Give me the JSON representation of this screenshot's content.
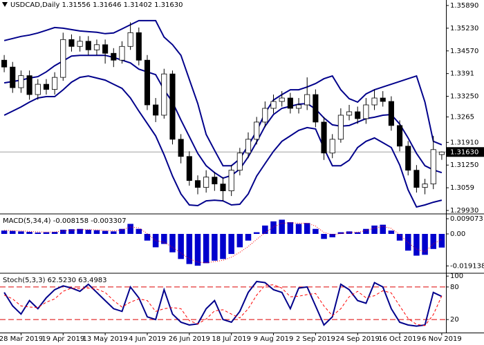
{
  "chart_data": [
    {
      "type": "candlestick",
      "title": "USDCAD,Daily  1.31556 1.31646 1.31402 1.31630",
      "categories": [
        null,
        null,
        "28 Mar 2019",
        null,
        null,
        null,
        null,
        "19 Apr 2019",
        null,
        null,
        null,
        null,
        "13 May 2019",
        null,
        null,
        null,
        null,
        "4 Jun 2019",
        null,
        null,
        null,
        null,
        "26 Jun 2019",
        null,
        null,
        null,
        null,
        "18 Jul 2019",
        null,
        null,
        null,
        null,
        "9 Aug 2019",
        null,
        null,
        null,
        null,
        "2 Sep 2019",
        null,
        null,
        null,
        null,
        "24 Sep 2019",
        null,
        null,
        null,
        null,
        "16 Oct 2019",
        null,
        null,
        null,
        null,
        "6 Nov 2019"
      ],
      "open": [
        1.343,
        1.341,
        1.335,
        1.3385,
        1.333,
        1.336,
        1.3345,
        1.338,
        1.349,
        1.347,
        1.3485,
        1.346,
        1.3475,
        1.345,
        1.343,
        1.347,
        1.351,
        1.343,
        1.33,
        1.327,
        1.339,
        1.32,
        1.315,
        1.308,
        1.306,
        1.309,
        1.307,
        1.305,
        1.311,
        1.316,
        1.32,
        1.325,
        1.329,
        1.331,
        1.332,
        1.329,
        1.33,
        1.333,
        1.325,
        1.316,
        1.32,
        1.327,
        1.328,
        1.326,
        1.33,
        1.332,
        1.331,
        1.324,
        1.318,
        1.311,
        1.306,
        1.307,
        1.31556
      ],
      "high": [
        1.3445,
        1.3425,
        1.34,
        1.34,
        1.3375,
        1.3375,
        1.3395,
        1.351,
        1.3505,
        1.35,
        1.35,
        1.349,
        1.349,
        1.3465,
        1.3485,
        1.354,
        1.3525,
        1.3445,
        1.332,
        1.3405,
        1.34,
        1.3215,
        1.3165,
        1.3095,
        1.311,
        1.3105,
        1.309,
        1.3125,
        1.3175,
        1.322,
        1.3265,
        1.331,
        1.333,
        1.334,
        1.3335,
        1.332,
        1.338,
        1.3345,
        1.3265,
        1.3215,
        1.329,
        1.33,
        1.3295,
        1.332,
        1.3345,
        1.334,
        1.3325,
        1.3255,
        1.3195,
        1.3125,
        1.3085,
        1.321,
        1.31646
      ],
      "low": [
        1.3395,
        1.3335,
        1.3335,
        1.3315,
        1.3315,
        1.333,
        1.333,
        1.337,
        1.3455,
        1.3455,
        1.3445,
        1.3445,
        1.342,
        1.341,
        1.342,
        1.346,
        1.3415,
        1.3285,
        1.325,
        1.326,
        1.3185,
        1.313,
        1.3065,
        1.304,
        1.3045,
        1.305,
        1.302,
        1.3035,
        1.3095,
        1.3145,
        1.3185,
        1.3235,
        1.3275,
        1.3295,
        1.3275,
        1.3275,
        1.3285,
        1.3235,
        1.314,
        1.3145,
        1.319,
        1.3255,
        1.3245,
        1.3245,
        1.3285,
        1.3295,
        1.3225,
        1.3165,
        1.3095,
        1.3045,
        1.304,
        1.3055,
        1.31402
      ],
      "close": [
        1.341,
        1.335,
        1.3385,
        1.333,
        1.336,
        1.3345,
        1.338,
        1.349,
        1.347,
        1.3485,
        1.346,
        1.3475,
        1.345,
        1.343,
        1.347,
        1.351,
        1.343,
        1.33,
        1.327,
        1.339,
        1.32,
        1.315,
        1.308,
        1.306,
        1.309,
        1.307,
        1.305,
        1.311,
        1.316,
        1.32,
        1.325,
        1.329,
        1.331,
        1.332,
        1.329,
        1.33,
        1.333,
        1.325,
        1.316,
        1.32,
        1.327,
        1.328,
        1.326,
        1.33,
        1.332,
        1.331,
        1.324,
        1.318,
        1.311,
        1.306,
        1.307,
        1.317,
        1.3163
      ],
      "up_color": "#ffffff",
      "down_color": "#000000",
      "bands": [
        {
          "color": "#00008b",
          "values": [
            1.3487,
            1.3493,
            1.3499,
            1.3503,
            1.3509,
            1.3517,
            1.3525,
            1.3523,
            1.3519,
            1.3515,
            1.3513,
            1.3511,
            1.3507,
            1.3509,
            1.3521,
            1.3533,
            1.3545,
            1.3545,
            1.3545,
            1.3497,
            1.3475,
            1.3444,
            1.3374,
            1.3304,
            1.3214,
            1.3168,
            1.3123,
            1.3123,
            1.3143,
            1.3182,
            1.3224,
            1.3276,
            1.3314,
            1.333,
            1.3344,
            1.3344,
            1.3352,
            1.3362,
            1.3376,
            1.3384,
            1.3344,
            1.3318,
            1.3308,
            1.3332,
            1.3344,
            1.3352,
            1.336,
            1.3368,
            1.3376,
            1.3384,
            1.3308,
            1.3194,
            1.3184
          ]
        },
        {
          "color": "#00008b",
          "values": [
            1.3364,
            1.3368,
            1.3372,
            1.3378,
            1.3382,
            1.3396,
            1.3414,
            1.3428,
            1.3442,
            1.3444,
            1.3444,
            1.3444,
            1.3444,
            1.3438,
            1.343,
            1.3422,
            1.3404,
            1.3396,
            1.3388,
            1.3344,
            1.3308,
            1.3256,
            1.3208,
            1.3159,
            1.3123,
            1.3103,
            1.3087,
            1.3095,
            1.3113,
            1.3149,
            1.3192,
            1.3238,
            1.3272,
            1.329,
            1.3296,
            1.3302,
            1.3304,
            1.3288,
            1.3262,
            1.3242,
            1.3238,
            1.324,
            1.325,
            1.326,
            1.3264,
            1.327,
            1.3272,
            1.3244,
            1.3204,
            1.3159,
            1.3123,
            1.3111,
            1.3103
          ]
        },
        {
          "color": "#00008b",
          "values": [
            1.327,
            1.3282,
            1.3294,
            1.3308,
            1.332,
            1.3324,
            1.3324,
            1.3344,
            1.3366,
            1.338,
            1.3384,
            1.3378,
            1.3372,
            1.336,
            1.3348,
            1.332,
            1.3282,
            1.3246,
            1.321,
            1.3155,
            1.3093,
            1.3041,
            1.3009,
            1.3007,
            1.3021,
            1.3023,
            1.3021,
            1.3009,
            1.3011,
            1.3041,
            1.3093,
            1.3129,
            1.3165,
            1.3194,
            1.321,
            1.3226,
            1.3234,
            1.323,
            1.3174,
            1.3123,
            1.3123,
            1.3139,
            1.3176,
            1.3194,
            1.3204,
            1.319,
            1.3176,
            1.3125,
            1.3053,
            1.3003,
            1.3009,
            1.3017,
            1.3023
          ]
        }
      ],
      "last_price": {
        "value": 1.3163,
        "label": "1.31630"
      },
      "ylim": [
        1.2985,
        1.3605
      ],
      "yticks": [
        {
          "value": 1.3589,
          "label": "1.35890"
        },
        {
          "value": 1.3523,
          "label": "1.35230"
        },
        {
          "value": 1.3457,
          "label": "1.34570"
        },
        1.3391,
        {
          "value": 1.3325,
          "label": "1.33250"
        },
        1.3265,
        {
          "value": 1.3191,
          "label": "1.31910"
        },
        {
          "value": 1.3125,
          "label": "1.31250"
        },
        1.3059,
        {
          "value": 1.2993,
          "label": "1.29930"
        }
      ]
    },
    {
      "type": "macd",
      "title": "MACD(5,34,4) -0.008158 -0.003307",
      "histogram": {
        "color": "#0000cd",
        "values": [
          0.002,
          0.0018,
          0.0015,
          0.0012,
          0.0008,
          0.001,
          0.0012,
          0.0025,
          0.0028,
          0.003,
          0.0025,
          0.0022,
          0.0018,
          0.0015,
          0.003,
          0.006,
          0.003,
          -0.004,
          -0.008,
          -0.006,
          -0.011,
          -0.015,
          -0.018,
          -0.019,
          -0.0175,
          -0.016,
          -0.015,
          -0.012,
          -0.008,
          -0.004,
          0.001,
          0.005,
          0.0075,
          0.0085,
          0.007,
          0.006,
          0.0065,
          0.003,
          -0.003,
          -0.002,
          0.001,
          0.0015,
          0.001,
          0.003,
          0.005,
          0.0055,
          0.002,
          -0.004,
          -0.01,
          -0.013,
          -0.0125,
          -0.009,
          -0.008158
        ]
      },
      "signal": {
        "color": "#ff0000",
        "style": "dotted",
        "values": [
          0.0022,
          0.002,
          0.0018,
          0.0015,
          0.0012,
          0.0011,
          0.0011,
          0.0018,
          0.0022,
          0.0026,
          0.0026,
          0.0024,
          0.0021,
          0.0018,
          0.0024,
          0.0042,
          0.0036,
          0.0002,
          -0.004,
          -0.005,
          -0.008,
          -0.0115,
          -0.0148,
          -0.0169,
          -0.0172,
          -0.0166,
          -0.0158,
          -0.0139,
          -0.011,
          -0.0075,
          -0.0033,
          0.0008,
          0.0042,
          0.0064,
          0.0067,
          0.0064,
          0.0064,
          0.0047,
          0.0009,
          -0.0005,
          0.0002,
          0.0009,
          0.001,
          0.002,
          0.0035,
          0.0045,
          0.0033,
          -0.0004,
          -0.0052,
          -0.0091,
          -0.0108,
          -0.006,
          -0.003307
        ]
      },
      "ylim": [
        -0.0231,
        0.01155
      ],
      "yticks": [
        0.009073,
        {
          "value": 0,
          "label": "0.00"
        },
        -0.019138
      ]
    },
    {
      "type": "stochastic",
      "title": "Stoch(5,3,3) 62.5230 63.4983",
      "series": [
        {
          "color": "#00008b",
          "style": "solid",
          "values": [
            70,
            45,
            30,
            55,
            40,
            60,
            75,
            82,
            78,
            72,
            85,
            70,
            55,
            40,
            35,
            80,
            60,
            25,
            20,
            75,
            30,
            15,
            10,
            12,
            40,
            55,
            20,
            15,
            35,
            70,
            90,
            88,
            75,
            70,
            40,
            78,
            80,
            45,
            10,
            25,
            85,
            75,
            55,
            50,
            88,
            80,
            40,
            15,
            10,
            8,
            10,
            70,
            62.523
          ]
        },
        {
          "color": "#ff0000",
          "style": "dashed",
          "values": [
            65,
            58,
            45,
            43,
            42,
            52,
            58,
            72,
            78,
            77,
            78,
            76,
            70,
            55,
            43,
            52,
            58,
            55,
            35,
            40,
            42,
            40,
            18,
            12,
            21,
            36,
            38,
            30,
            23,
            40,
            65,
            83,
            84,
            78,
            62,
            63,
            66,
            68,
            45,
            27,
            40,
            62,
            72,
            60,
            64,
            73,
            69,
            45,
            22,
            11,
            9,
            29,
            63.4983
          ]
        }
      ],
      "levels": [
        80,
        20
      ],
      "level_color": "#dd0000",
      "ylim": [
        -4,
        104
      ],
      "yticks": [
        100,
        80,
        20
      ]
    }
  ]
}
